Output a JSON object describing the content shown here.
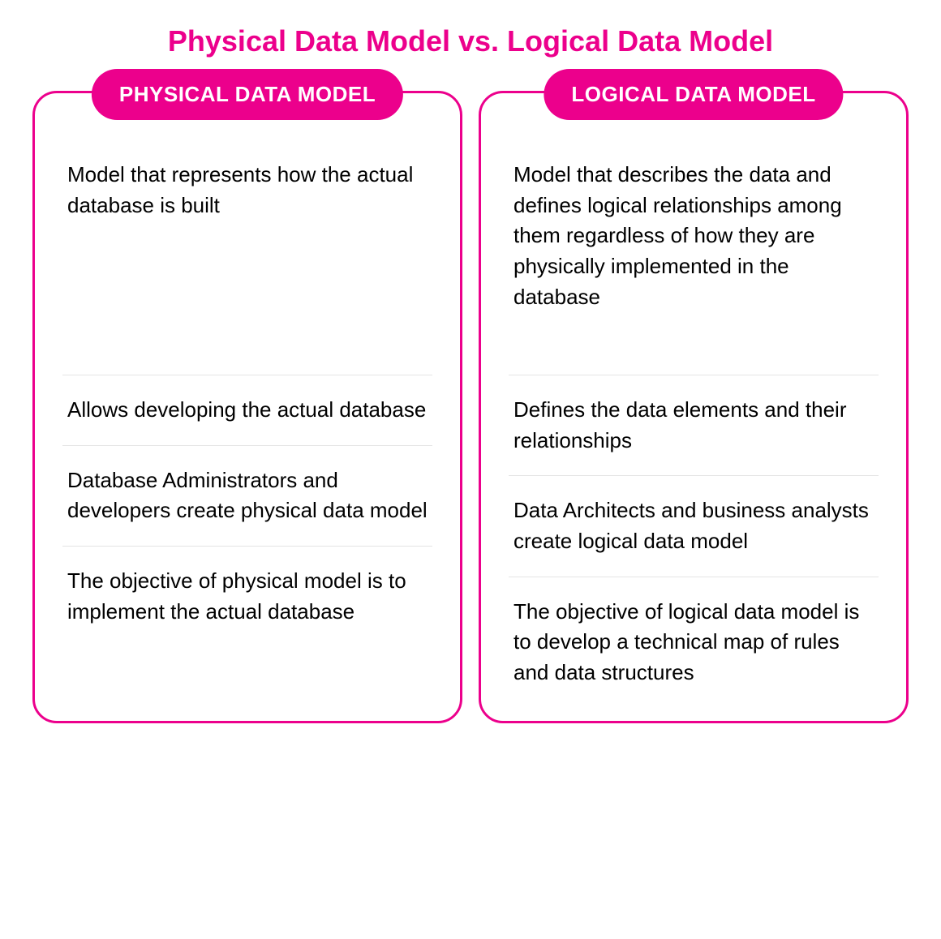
{
  "title": "Physical Data Model vs. Logical Data Model",
  "title_color": "#ec008c",
  "title_fontsize": 36,
  "background_color": "#ffffff",
  "divider_color": "#e4e4e4",
  "text_color": "#000000",
  "item_fontsize": 26,
  "header_fontsize": 26,
  "header_text_color": "#ffffff",
  "column_border_radius": 30,
  "header_border_radius": 32,
  "first_row_min_height": 290,
  "columns": [
    {
      "header": "PHYSICAL DATA MODEL",
      "accent_color": "#ec008c",
      "items": [
        "Model that represents how the actual database is built",
        "Allows developing the actual database",
        "Database Administrators and developers create physical data model",
        "The objective of physical model is to implement the actual database"
      ]
    },
    {
      "header": "LOGICAL DATA MODEL",
      "accent_color": "#ec008c",
      "items": [
        "Model that describes the data and defines logical relationships among them regardless of how they are physically implemented in the database",
        "Defines the data elements and their relationships",
        "Data Architects and business analysts create logical data model",
        "The objective of logical data model is to develop a technical map of rules and data structures"
      ]
    }
  ]
}
